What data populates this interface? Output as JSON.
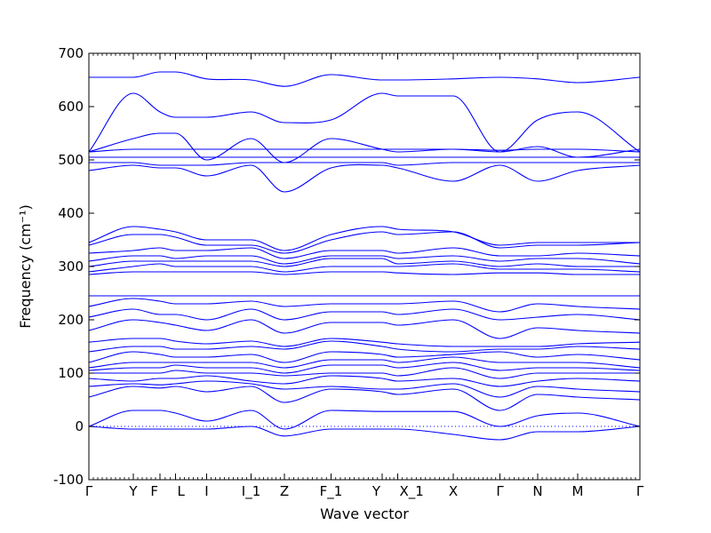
{
  "chart_data": {
    "type": "line",
    "title": "",
    "xlabel": "Wave vector",
    "ylabel": "Frequency (cm⁻¹)",
    "ylim": [
      -100,
      700
    ],
    "yticks": [
      -100,
      0,
      100,
      200,
      300,
      400,
      500,
      600,
      700
    ],
    "x_range": [
      0,
      12.4
    ],
    "grid": false,
    "legend": "none",
    "line_color": "#0000ff",
    "zero_line": {
      "y": 0,
      "style": "dotted",
      "color": "#0000ff"
    },
    "high_symmetry_points": [
      {
        "label": "Γ",
        "x": 0.0
      },
      {
        "label": "Y",
        "x": 1.0
      },
      {
        "label": "F",
        "x": 1.6
      },
      {
        "label": "L",
        "x": 1.95
      },
      {
        "label": "I",
        "x": 2.65
      },
      {
        "label": "I_1",
        "x": 3.65
      },
      {
        "label": "Z",
        "x": 4.4
      },
      {
        "label": "F_1",
        "x": 5.45
      },
      {
        "label": "Y",
        "x": 6.6
      },
      {
        "label": "X_1",
        "x": 6.95
      },
      {
        "label": "X",
        "x": 8.2
      },
      {
        "label": "Γ",
        "x": 9.25
      },
      {
        "label": "N",
        "x": 10.1
      },
      {
        "label": "M",
        "x": 11.0
      },
      {
        "label": "Γ",
        "x": 12.4
      }
    ],
    "series": [
      {
        "x": [
          0,
          1,
          1.6,
          1.95,
          2.65,
          3.65,
          4.4,
          5.45,
          6.6,
          6.95,
          8.2,
          9.25,
          10.1,
          11,
          12.4
        ],
        "y": [
          0,
          -5,
          -5,
          -5,
          -5,
          0,
          -18,
          -5,
          -5,
          -5,
          -15,
          -25,
          -10,
          -10,
          0
        ]
      },
      {
        "x": [
          0,
          1,
          1.6,
          1.95,
          2.65,
          3.65,
          4.4,
          5.45,
          6.6,
          6.95,
          8.2,
          9.25,
          10.1,
          11,
          12.4
        ],
        "y": [
          0,
          30,
          30,
          25,
          10,
          30,
          -5,
          30,
          28,
          28,
          28,
          0,
          20,
          25,
          0
        ]
      },
      {
        "x": [
          0,
          1,
          1.6,
          1.95,
          2.65,
          3.65,
          4.4,
          5.45,
          6.6,
          6.95,
          8.2,
          9.25,
          10.1,
          11,
          12.4
        ],
        "y": [
          55,
          75,
          72,
          75,
          65,
          75,
          45,
          70,
          65,
          60,
          70,
          30,
          60,
          55,
          50
        ]
      },
      {
        "x": [
          0,
          1,
          1.6,
          1.95,
          2.65,
          3.65,
          4.4,
          5.45,
          6.6,
          6.95,
          8.2,
          9.25,
          10.1,
          11,
          12.4
        ],
        "y": [
          75,
          80,
          78,
          80,
          85,
          80,
          70,
          75,
          70,
          70,
          80,
          55,
          75,
          70,
          65
        ]
      },
      {
        "x": [
          0,
          1,
          1.6,
          1.95,
          2.65,
          3.65,
          4.4,
          5.45,
          6.6,
          6.95,
          8.2,
          9.25,
          10.1,
          11,
          12.4
        ],
        "y": [
          90,
          85,
          90,
          90,
          95,
          85,
          80,
          95,
          90,
          85,
          90,
          75,
          85,
          90,
          85
        ]
      },
      {
        "x": [
          0,
          1,
          1.6,
          1.95,
          2.65,
          3.65,
          4.4,
          5.45,
          6.6,
          6.95,
          8.2,
          9.25,
          10.1,
          11,
          12.4
        ],
        "y": [
          100,
          100,
          100,
          105,
          100,
          100,
          95,
          100,
          100,
          95,
          110,
          90,
          100,
          100,
          100
        ]
      },
      {
        "x": [
          0,
          1,
          1.6,
          1.95,
          2.65,
          3.65,
          4.4,
          5.45,
          6.6,
          6.95,
          8.2,
          9.25,
          10.1,
          11,
          12.4
        ],
        "y": [
          105,
          110,
          110,
          115,
          110,
          110,
          100,
          115,
          115,
          110,
          120,
          105,
          110,
          110,
          105
        ]
      },
      {
        "x": [
          0,
          1,
          1.6,
          1.95,
          2.65,
          3.65,
          4.4,
          5.45,
          6.6,
          6.95,
          8.2,
          9.25,
          10.1,
          11,
          12.4
        ],
        "y": [
          110,
          120,
          120,
          120,
          120,
          120,
          110,
          125,
          125,
          120,
          130,
          120,
          120,
          120,
          110
        ]
      },
      {
        "x": [
          0,
          1,
          1.6,
          1.95,
          2.65,
          3.65,
          4.4,
          5.45,
          6.6,
          6.95,
          8.2,
          9.25,
          10.1,
          11,
          12.4
        ],
        "y": [
          120,
          140,
          135,
          130,
          130,
          135,
          120,
          140,
          135,
          130,
          135,
          140,
          130,
          135,
          125
        ]
      },
      {
        "x": [
          0,
          1,
          1.6,
          1.95,
          2.65,
          3.65,
          4.4,
          5.45,
          6.6,
          6.95,
          8.2,
          9.25,
          10.1,
          11,
          12.4
        ],
        "y": [
          140,
          150,
          150,
          145,
          145,
          150,
          145,
          160,
          150,
          145,
          140,
          145,
          145,
          150,
          145
        ]
      },
      {
        "x": [
          0,
          1,
          1.6,
          1.95,
          2.65,
          3.65,
          4.4,
          5.45,
          6.6,
          6.95,
          8.2,
          9.25,
          10.1,
          11,
          12.4
        ],
        "y": [
          158,
          165,
          165,
          160,
          155,
          160,
          150,
          165,
          158,
          155,
          150,
          150,
          150,
          155,
          158
        ]
      },
      {
        "x": [
          0,
          1,
          1.6,
          1.95,
          2.65,
          3.65,
          4.4,
          5.45,
          6.6,
          6.95,
          8.2,
          9.25,
          10.1,
          11,
          12.4
        ],
        "y": [
          180,
          200,
          195,
          190,
          180,
          200,
          175,
          195,
          195,
          190,
          200,
          165,
          185,
          180,
          175
        ]
      },
      {
        "x": [
          0,
          1,
          1.6,
          1.95,
          2.65,
          3.65,
          4.4,
          5.45,
          6.6,
          6.95,
          8.2,
          9.25,
          10.1,
          11,
          12.4
        ],
        "y": [
          205,
          220,
          210,
          210,
          200,
          220,
          200,
          215,
          215,
          210,
          220,
          200,
          205,
          210,
          200
        ]
      },
      {
        "x": [
          0,
          1,
          1.6,
          1.95,
          2.65,
          3.65,
          4.4,
          5.45,
          6.6,
          6.95,
          8.2,
          9.25,
          10.1,
          11,
          12.4
        ],
        "y": [
          225,
          240,
          235,
          230,
          230,
          235,
          225,
          230,
          230,
          230,
          235,
          215,
          230,
          225,
          220
        ]
      },
      {
        "x": [
          0,
          1,
          1.6,
          1.95,
          2.65,
          3.65,
          4.4,
          5.45,
          6.6,
          6.95,
          8.2,
          9.25,
          10.1,
          11,
          12.4
        ],
        "y": [
          245,
          245,
          245,
          245,
          245,
          245,
          245,
          245,
          245,
          245,
          245,
          245,
          245,
          245,
          245
        ]
      },
      {
        "x": [
          0,
          1,
          1.6,
          1.95,
          2.65,
          3.65,
          4.4,
          5.45,
          6.6,
          6.95,
          8.2,
          9.25,
          10.1,
          11,
          12.4
        ],
        "y": [
          285,
          290,
          290,
          290,
          290,
          290,
          285,
          290,
          290,
          288,
          285,
          288,
          288,
          285,
          285
        ]
      },
      {
        "x": [
          0,
          1,
          1.6,
          1.95,
          2.65,
          3.65,
          4.4,
          5.45,
          6.6,
          6.95,
          8.2,
          9.25,
          10.1,
          11,
          12.4
        ],
        "y": [
          290,
          300,
          305,
          300,
          300,
          300,
          290,
          300,
          300,
          300,
          305,
          295,
          295,
          295,
          290
        ]
      },
      {
        "x": [
          0,
          1,
          1.6,
          1.95,
          2.65,
          3.65,
          4.4,
          5.45,
          6.6,
          6.95,
          8.2,
          9.25,
          10.1,
          11,
          12.4
        ],
        "y": [
          300,
          310,
          310,
          310,
          310,
          310,
          300,
          315,
          315,
          305,
          310,
          300,
          305,
          300,
          300
        ]
      },
      {
        "x": [
          0,
          1,
          1.6,
          1.95,
          2.65,
          3.65,
          4.4,
          5.45,
          6.6,
          6.95,
          8.2,
          9.25,
          10.1,
          11,
          12.4
        ],
        "y": [
          310,
          320,
          320,
          315,
          320,
          320,
          305,
          320,
          320,
          315,
          320,
          310,
          315,
          315,
          305
        ]
      },
      {
        "x": [
          0,
          1,
          1.6,
          1.95,
          2.65,
          3.65,
          4.4,
          5.45,
          6.6,
          6.95,
          8.2,
          9.25,
          10.1,
          11,
          12.4
        ],
        "y": [
          325,
          330,
          335,
          330,
          330,
          335,
          315,
          330,
          330,
          325,
          335,
          320,
          320,
          325,
          320
        ]
      },
      {
        "x": [
          0,
          1,
          1.6,
          1.95,
          2.65,
          3.65,
          4.4,
          5.45,
          6.6,
          6.95,
          8.2,
          9.25,
          10.1,
          11,
          12.4
        ],
        "y": [
          340,
          360,
          360,
          355,
          340,
          340,
          325,
          350,
          365,
          360,
          365,
          335,
          340,
          340,
          345
        ]
      },
      {
        "x": [
          0,
          1,
          1.6,
          1.95,
          2.65,
          3.65,
          4.4,
          5.45,
          6.6,
          6.95,
          8.2,
          9.25,
          10.1,
          11,
          12.4
        ],
        "y": [
          345,
          375,
          370,
          365,
          350,
          350,
          330,
          360,
          375,
          370,
          365,
          340,
          345,
          345,
          345
        ]
      },
      {
        "x": [
          0,
          1,
          1.6,
          1.95,
          2.65,
          3.65,
          4.4,
          5.45,
          6.6,
          6.95,
          8.2,
          9.25,
          10.1,
          11,
          12.4
        ],
        "y": [
          480,
          490,
          485,
          485,
          470,
          490,
          440,
          485,
          490,
          485,
          460,
          490,
          460,
          480,
          490
        ]
      },
      {
        "x": [
          0,
          1,
          1.6,
          1.95,
          2.65,
          3.65,
          4.4,
          5.45,
          6.6,
          6.95,
          8.2,
          9.25,
          10.1,
          11,
          12.4
        ],
        "y": [
          495,
          495,
          490,
          490,
          490,
          495,
          495,
          495,
          495,
          490,
          495,
          495,
          495,
          495,
          495
        ]
      },
      {
        "x": [
          0,
          1,
          1.6,
          1.95,
          2.65,
          3.65,
          4.4,
          5.45,
          6.6,
          6.95,
          8.2,
          9.25,
          10.1,
          11,
          12.4
        ],
        "y": [
          505,
          505,
          505,
          505,
          505,
          505,
          505,
          505,
          505,
          505,
          505,
          505,
          505,
          505,
          505
        ]
      },
      {
        "x": [
          0,
          1,
          1.6,
          1.95,
          2.65,
          3.65,
          4.4,
          5.45,
          6.6,
          6.95,
          8.2,
          9.25,
          10.1,
          11,
          12.4
        ],
        "y": [
          515,
          520,
          520,
          520,
          520,
          520,
          520,
          520,
          520,
          520,
          520,
          518,
          520,
          520,
          515
        ]
      },
      {
        "x": [
          0,
          1,
          1.6,
          1.95,
          2.65,
          3.65,
          4.4,
          5.45,
          6.6,
          6.95,
          8.2,
          9.25,
          10.1,
          11,
          12.4
        ],
        "y": [
          515,
          540,
          550,
          550,
          500,
          540,
          495,
          540,
          520,
          515,
          520,
          515,
          525,
          505,
          520
        ]
      },
      {
        "x": [
          0,
          1,
          1.6,
          1.95,
          2.65,
          3.65,
          4.4,
          5.45,
          6.6,
          6.95,
          8.2,
          9.25,
          10.1,
          11,
          12.4
        ],
        "y": [
          515,
          625,
          590,
          580,
          580,
          590,
          570,
          575,
          625,
          620,
          620,
          515,
          575,
          590,
          515
        ]
      },
      {
        "x": [
          0,
          1,
          1.6,
          1.95,
          2.65,
          3.65,
          4.4,
          5.45,
          6.6,
          6.95,
          8.2,
          9.25,
          10.1,
          11,
          12.4
        ],
        "y": [
          655,
          655,
          665,
          665,
          652,
          650,
          638,
          660,
          650,
          650,
          652,
          655,
          652,
          645,
          655
        ]
      }
    ]
  }
}
